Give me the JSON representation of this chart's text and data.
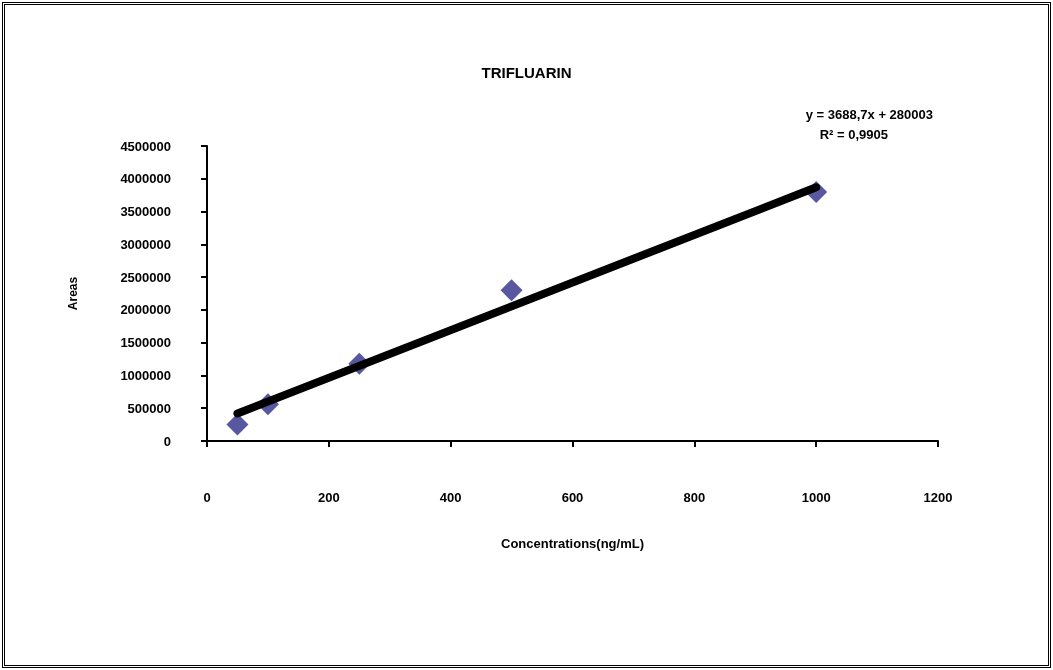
{
  "chart_data": {
    "type": "scatter",
    "title": "TRIFLUARIN",
    "xlabel": "Concentrations(ng/mL)",
    "ylabel": "Areas",
    "annotations": [
      "y = 3688,7x + 280003",
      "R² = 0,9905"
    ],
    "xlim": [
      0,
      1200
    ],
    "xticks": [
      0,
      200,
      400,
      600,
      800,
      1000,
      1200
    ],
    "ylim": [
      0,
      4500000
    ],
    "yticks": [
      0,
      500000,
      1000000,
      1500000,
      2000000,
      2500000,
      3000000,
      3500000,
      4000000,
      4500000
    ],
    "grid": false,
    "marker": "diamond",
    "series": [
      {
        "color": "#2e2e8a",
        "x": [
          50,
          100,
          250,
          500,
          1000
        ],
        "values": [
          250000,
          560000,
          1180000,
          2300000,
          3800000
        ]
      },
      {
        "type": "line",
        "color": "#000000",
        "marker": "none",
        "line_style": "solid",
        "x": [
          50,
          1000
        ],
        "values": [
          420000,
          3870000
        ]
      }
    ]
  }
}
